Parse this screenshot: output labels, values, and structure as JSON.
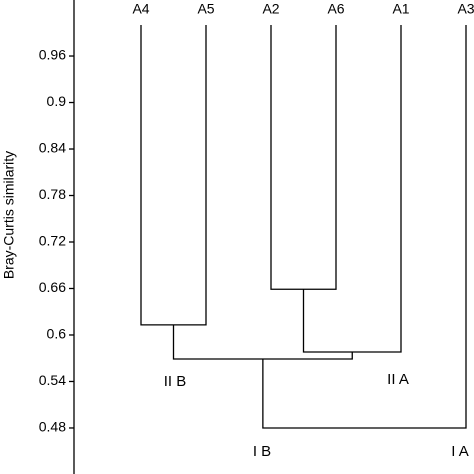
{
  "chart_data": {
    "type": "dendrogram",
    "y_label": "Bray-Curtis similarity",
    "leaves": [
      "A4",
      "A5",
      "A2",
      "A6",
      "A1",
      "A3"
    ],
    "leaf_height": 1.0,
    "merges": [
      {
        "join": [
          0,
          1
        ],
        "height": 0.613
      },
      {
        "join": [
          2,
          3
        ],
        "height": 0.659
      },
      {
        "join": [
          7,
          4
        ],
        "height": 0.578
      },
      {
        "join": [
          6,
          8
        ],
        "height": 0.569
      },
      {
        "join": [
          9,
          5
        ],
        "height": 0.48
      }
    ],
    "annotations": [
      "II B",
      "II A",
      "I B",
      "I A"
    ],
    "ylim": [
      0.4206,
      1.0323
    ],
    "yticks": [
      0.48,
      0.54,
      0.6,
      0.66,
      0.72,
      0.78,
      0.84,
      0.9,
      0.96
    ],
    "color": "#000000"
  }
}
